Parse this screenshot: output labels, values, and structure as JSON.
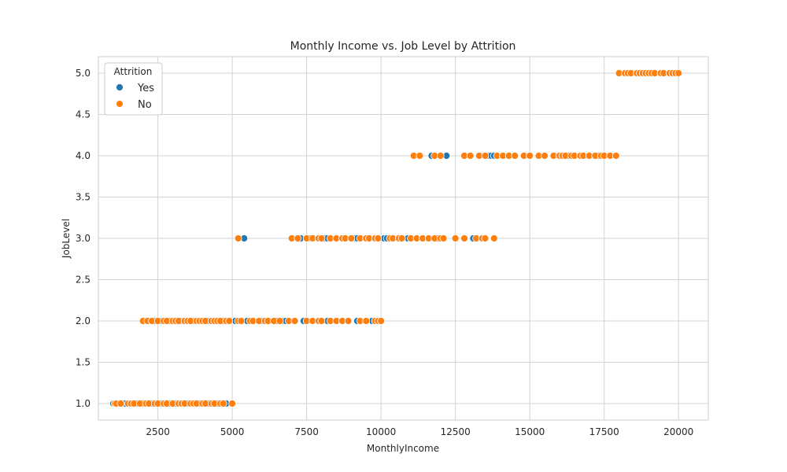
{
  "chart_data": {
    "type": "scatter",
    "title": "Monthly Income vs. Job Level by Attrition",
    "xlabel": "MonthlyIncome",
    "ylabel": "JobLevel",
    "xlim": [
      500,
      21000
    ],
    "ylim": [
      0.8,
      5.2
    ],
    "x_ticks": [
      2500,
      5000,
      7500,
      10000,
      12500,
      15000,
      17500,
      20000
    ],
    "y_ticks": [
      1.0,
      1.5,
      2.0,
      2.5,
      3.0,
      3.5,
      4.0,
      4.5,
      5.0
    ],
    "x_tick_labels": [
      "2500",
      "5000",
      "7500",
      "10000",
      "12500",
      "15000",
      "17500",
      "20000"
    ],
    "y_tick_labels": [
      "1.0",
      "1.5",
      "2.0",
      "2.5",
      "3.0",
      "3.5",
      "4.0",
      "4.5",
      "5.0"
    ],
    "grid": true,
    "legend": {
      "title": "Attrition",
      "placement": "top-left"
    },
    "series": [
      {
        "name": "Yes",
        "color": "#1f77b4",
        "points": [
          [
            1000,
            1
          ],
          [
            1200,
            1
          ],
          [
            1300,
            1
          ],
          [
            1400,
            1
          ],
          [
            1800,
            1
          ],
          [
            2000,
            1
          ],
          [
            2300,
            1
          ],
          [
            2600,
            1
          ],
          [
            2900,
            1
          ],
          [
            3100,
            1
          ],
          [
            3500,
            1
          ],
          [
            3900,
            1
          ],
          [
            4200,
            1
          ],
          [
            4500,
            1
          ],
          [
            4800,
            1
          ],
          [
            2100,
            2
          ],
          [
            2400,
            2
          ],
          [
            2600,
            2
          ],
          [
            2900,
            2
          ],
          [
            3300,
            2
          ],
          [
            3700,
            2
          ],
          [
            4200,
            2
          ],
          [
            4700,
            2
          ],
          [
            5100,
            2
          ],
          [
            5500,
            2
          ],
          [
            6000,
            2
          ],
          [
            6500,
            2
          ],
          [
            6700,
            2
          ],
          [
            6800,
            2
          ],
          [
            7400,
            2
          ],
          [
            8200,
            2
          ],
          [
            9200,
            2
          ],
          [
            9700,
            2
          ],
          [
            5400,
            3
          ],
          [
            7300,
            3
          ],
          [
            7600,
            3
          ],
          [
            8100,
            3
          ],
          [
            8200,
            3
          ],
          [
            9100,
            3
          ],
          [
            9200,
            3
          ],
          [
            10100,
            3
          ],
          [
            10200,
            3
          ],
          [
            10900,
            3
          ],
          [
            11900,
            3
          ],
          [
            13100,
            3
          ],
          [
            11700,
            4
          ],
          [
            12200,
            4
          ],
          [
            13600,
            4
          ],
          [
            13700,
            4
          ],
          [
            13800,
            4
          ],
          [
            16300,
            4
          ],
          [
            17300,
            4
          ]
        ]
      },
      {
        "name": "No",
        "color": "#ff7f0e",
        "points": [
          [
            1050,
            1
          ],
          [
            1100,
            1
          ],
          [
            1250,
            1
          ],
          [
            1500,
            1
          ],
          [
            1600,
            1
          ],
          [
            1700,
            1
          ],
          [
            1900,
            1
          ],
          [
            2100,
            1
          ],
          [
            2200,
            1
          ],
          [
            2400,
            1
          ],
          [
            2500,
            1
          ],
          [
            2700,
            1
          ],
          [
            2800,
            1
          ],
          [
            3000,
            1
          ],
          [
            3200,
            1
          ],
          [
            3300,
            1
          ],
          [
            3400,
            1
          ],
          [
            3600,
            1
          ],
          [
            3700,
            1
          ],
          [
            3800,
            1
          ],
          [
            4000,
            1
          ],
          [
            4100,
            1
          ],
          [
            4300,
            1
          ],
          [
            4400,
            1
          ],
          [
            4600,
            1
          ],
          [
            4700,
            1
          ],
          [
            5000,
            1
          ],
          [
            2000,
            2
          ],
          [
            2150,
            2
          ],
          [
            2300,
            2
          ],
          [
            2500,
            2
          ],
          [
            2700,
            2
          ],
          [
            2800,
            2
          ],
          [
            3000,
            2
          ],
          [
            3100,
            2
          ],
          [
            3200,
            2
          ],
          [
            3400,
            2
          ],
          [
            3500,
            2
          ],
          [
            3600,
            2
          ],
          [
            3800,
            2
          ],
          [
            3900,
            2
          ],
          [
            4000,
            2
          ],
          [
            4100,
            2
          ],
          [
            4300,
            2
          ],
          [
            4400,
            2
          ],
          [
            4500,
            2
          ],
          [
            4600,
            2
          ],
          [
            4800,
            2
          ],
          [
            4900,
            2
          ],
          [
            5200,
            2
          ],
          [
            5300,
            2
          ],
          [
            5600,
            2
          ],
          [
            5700,
            2
          ],
          [
            5900,
            2
          ],
          [
            6100,
            2
          ],
          [
            6200,
            2
          ],
          [
            6400,
            2
          ],
          [
            6600,
            2
          ],
          [
            6900,
            2
          ],
          [
            7100,
            2
          ],
          [
            7500,
            2
          ],
          [
            7700,
            2
          ],
          [
            7900,
            2
          ],
          [
            8000,
            2
          ],
          [
            8300,
            2
          ],
          [
            8500,
            2
          ],
          [
            8700,
            2
          ],
          [
            8900,
            2
          ],
          [
            9300,
            2
          ],
          [
            9500,
            2
          ],
          [
            9800,
            2
          ],
          [
            9900,
            2
          ],
          [
            10000,
            2
          ],
          [
            5200,
            3
          ],
          [
            7000,
            3
          ],
          [
            7200,
            3
          ],
          [
            7500,
            3
          ],
          [
            7700,
            3
          ],
          [
            7900,
            3
          ],
          [
            8000,
            3
          ],
          [
            8300,
            3
          ],
          [
            8500,
            3
          ],
          [
            8700,
            3
          ],
          [
            8800,
            3
          ],
          [
            9000,
            3
          ],
          [
            9300,
            3
          ],
          [
            9500,
            3
          ],
          [
            9600,
            3
          ],
          [
            9800,
            3
          ],
          [
            9900,
            3
          ],
          [
            10300,
            3
          ],
          [
            10400,
            3
          ],
          [
            10600,
            3
          ],
          [
            10700,
            3
          ],
          [
            11000,
            3
          ],
          [
            11200,
            3
          ],
          [
            11400,
            3
          ],
          [
            11600,
            3
          ],
          [
            11800,
            3
          ],
          [
            12000,
            3
          ],
          [
            12100,
            3
          ],
          [
            12500,
            3
          ],
          [
            12800,
            3
          ],
          [
            13200,
            3
          ],
          [
            13400,
            3
          ],
          [
            13500,
            3
          ],
          [
            13800,
            3
          ],
          [
            11100,
            4
          ],
          [
            11300,
            4
          ],
          [
            11800,
            4
          ],
          [
            12000,
            4
          ],
          [
            12800,
            4
          ],
          [
            13000,
            4
          ],
          [
            13300,
            4
          ],
          [
            13500,
            4
          ],
          [
            13900,
            4
          ],
          [
            14100,
            4
          ],
          [
            14300,
            4
          ],
          [
            14500,
            4
          ],
          [
            14800,
            4
          ],
          [
            15000,
            4
          ],
          [
            15300,
            4
          ],
          [
            15500,
            4
          ],
          [
            15800,
            4
          ],
          [
            16000,
            4
          ],
          [
            16100,
            4
          ],
          [
            16200,
            4
          ],
          [
            16400,
            4
          ],
          [
            16500,
            4
          ],
          [
            16700,
            4
          ],
          [
            16800,
            4
          ],
          [
            17000,
            4
          ],
          [
            17200,
            4
          ],
          [
            17400,
            4
          ],
          [
            17500,
            4
          ],
          [
            17700,
            4
          ],
          [
            17900,
            4
          ],
          [
            18000,
            5
          ],
          [
            18200,
            5
          ],
          [
            18300,
            5
          ],
          [
            18400,
            5
          ],
          [
            18600,
            5
          ],
          [
            18700,
            5
          ],
          [
            18800,
            5
          ],
          [
            18900,
            5
          ],
          [
            19000,
            5
          ],
          [
            19100,
            5
          ],
          [
            19200,
            5
          ],
          [
            19400,
            5
          ],
          [
            19500,
            5
          ],
          [
            19700,
            5
          ],
          [
            19800,
            5
          ],
          [
            19900,
            5
          ],
          [
            20000,
            5
          ]
        ]
      }
    ]
  }
}
